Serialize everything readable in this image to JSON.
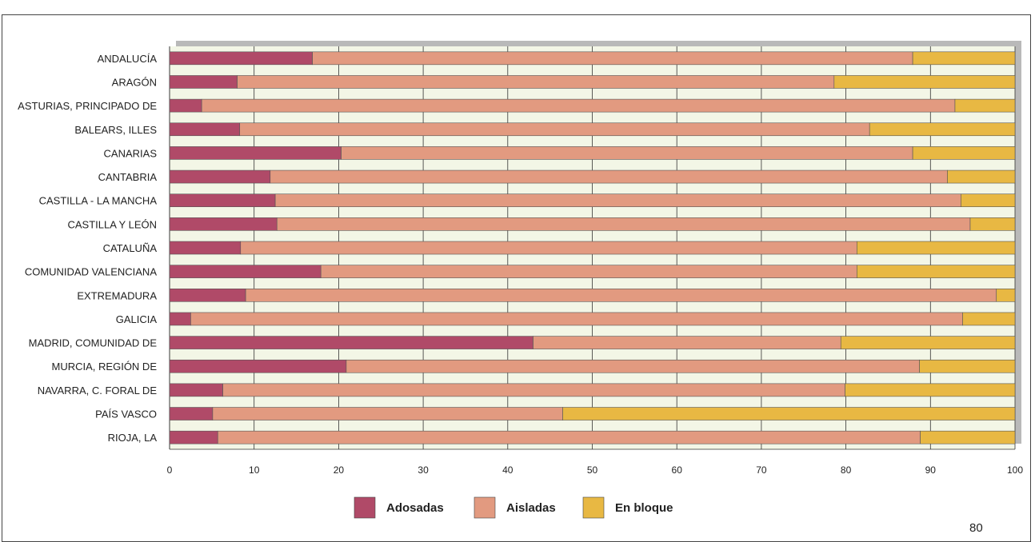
{
  "page": {
    "number": "80"
  },
  "colors": {
    "plot_background": "#f3f6e6",
    "shadow": "#b9b9b9",
    "grid": "#333333"
  },
  "chart_data": {
    "type": "bar",
    "orientation": "horizontal",
    "stacked": true,
    "title": "",
    "xlabel": "",
    "ylabel": "",
    "xlim": [
      0,
      100
    ],
    "x_ticks": [
      0,
      10,
      20,
      30,
      40,
      50,
      60,
      70,
      80,
      90,
      100
    ],
    "grid": true,
    "legend_position": "bottom-center",
    "categories": [
      "ANDALUCÍA",
      "ARAGÓN",
      "ASTURIAS, PRINCIPADO DE",
      "BALEARS, ILLES",
      "CANARIAS",
      "CANTABRIA",
      "CASTILLA - LA MANCHA",
      "CASTILLA Y LEÓN",
      "CATALUÑA",
      "COMUNIDAD VALENCIANA",
      "EXTREMADURA",
      "GALICIA",
      "MADRID, COMUNIDAD DE",
      "MURCIA, REGIÓN DE",
      "NAVARRA, C. FORAL DE",
      "PAÍS VASCO",
      "RIOJA, LA"
    ],
    "series": [
      {
        "name": "Adosadas",
        "color": "#b04a68",
        "values": [
          16.9,
          8.0,
          3.8,
          8.3,
          20.3,
          11.9,
          12.5,
          12.7,
          8.4,
          17.9,
          9.0,
          2.5,
          43.0,
          20.9,
          6.3,
          5.1,
          5.7
        ]
      },
      {
        "name": "Aisladas",
        "color": "#e29a80",
        "values": [
          71.0,
          70.6,
          89.1,
          74.5,
          67.6,
          80.1,
          81.1,
          82.0,
          72.9,
          63.4,
          88.8,
          91.3,
          36.4,
          67.8,
          73.6,
          41.4,
          83.1
        ]
      },
      {
        "name": "En bloque",
        "color": "#e8b843",
        "values": [
          12.1,
          21.4,
          7.1,
          17.2,
          12.1,
          8.0,
          6.4,
          5.3,
          18.7,
          18.7,
          2.2,
          6.2,
          20.6,
          11.3,
          20.1,
          53.5,
          11.2
        ]
      }
    ]
  }
}
